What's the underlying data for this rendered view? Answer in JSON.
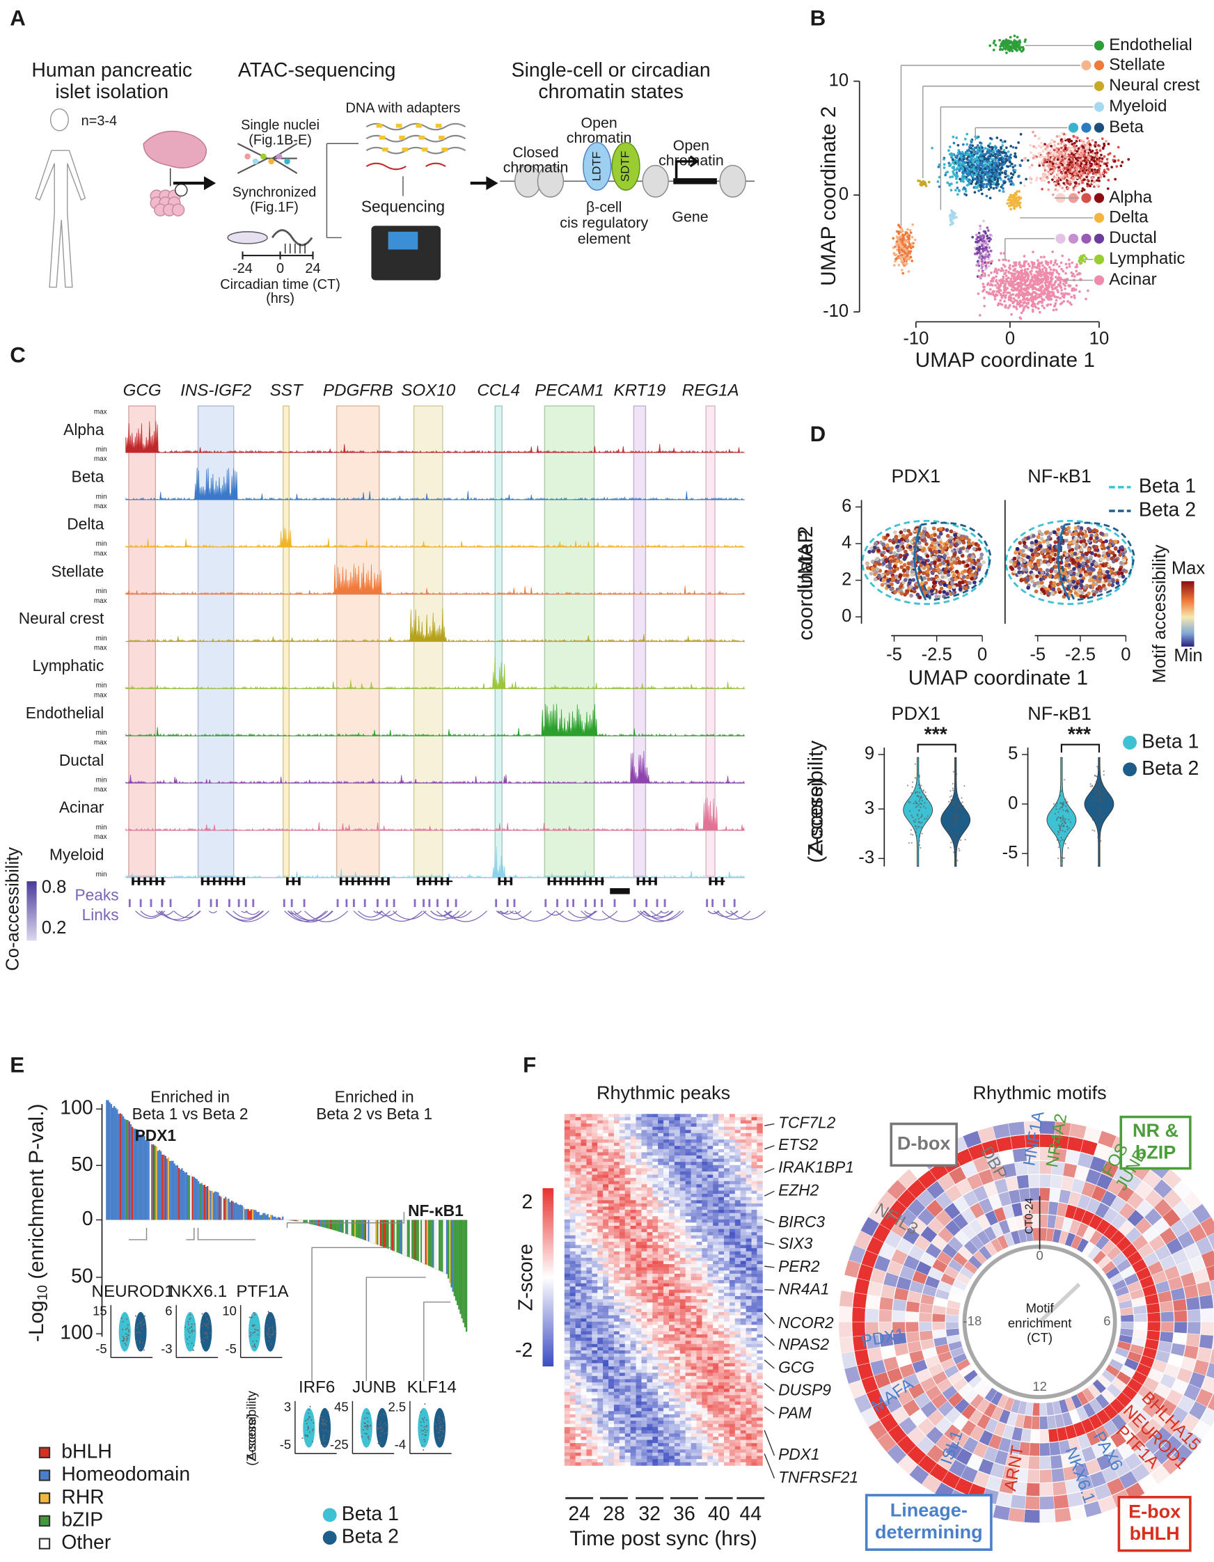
{
  "A": {
    "label": "A",
    "islet": [
      "Human pancreatic",
      "islet isolation"
    ],
    "n": "n=3-4",
    "atac": "ATAC-sequencing",
    "nuclei": [
      "Single nuclei",
      "(Fig.1B-E)"
    ],
    "dna": "DNA with adapters",
    "sync": [
      "Synchronized",
      "(Fig.1F)"
    ],
    "sequencing": "Sequencing",
    "ct_ticks": [
      "-24",
      "0",
      "24"
    ],
    "ct_label": [
      "Circadian time (CT)",
      "(hrs)"
    ],
    "states": [
      "Single-cell or circadian",
      "chromatin states"
    ],
    "closed": [
      "Closed",
      "chromatin"
    ],
    "open1": [
      "Open",
      "chromatin"
    ],
    "ldtf": "LDTF",
    "sdtf": "SDTF",
    "open2": [
      "Open",
      "chromatin"
    ],
    "cre": [
      "β-cell",
      "cis regulatory",
      "element"
    ],
    "gene": "Gene"
  },
  "B": {
    "label": "B",
    "xlabel": "UMAP coordinate 1",
    "ylabel": "UMAP coordinate 2",
    "xticks": [
      "-10",
      "0",
      "10"
    ],
    "yticks": [
      "10",
      "0",
      "-10"
    ],
    "legend": [
      {
        "name": "Endothelial",
        "colors": [
          "#2e9e3a"
        ]
      },
      {
        "name": "Stellate",
        "colors": [
          "#f6b48a",
          "#f07a3a"
        ]
      },
      {
        "name": "Neural crest",
        "colors": [
          "#c8a827"
        ]
      },
      {
        "name": "Myeloid",
        "colors": [
          "#a6d8ee"
        ]
      },
      {
        "name": "Beta",
        "colors": [
          "#3ab3cf",
          "#2a7bbf",
          "#1d4f7c"
        ]
      },
      {
        "name": "Alpha",
        "colors": [
          "#fbd3cc",
          "#f29c98",
          "#d6504a",
          "#8b0d12"
        ]
      },
      {
        "name": "Delta",
        "colors": [
          "#f4b53f"
        ]
      },
      {
        "name": "Ductal",
        "colors": [
          "#e3c3e6",
          "#c58fd0",
          "#9b59b6",
          "#6a3d9a"
        ]
      },
      {
        "name": "Lymphatic",
        "colors": [
          "#9acd32"
        ]
      },
      {
        "name": "Acinar",
        "colors": [
          "#ef8bab"
        ]
      }
    ]
  },
  "C": {
    "label": "C",
    "genes": [
      "GCG",
      "INS-IGF2",
      "SST",
      "PDGFRB",
      "SOX10",
      "CCL4",
      "PECAM1",
      "KRT19",
      "REG1A"
    ],
    "gene_colors": [
      "#f4b3b0",
      "#b8cff0",
      "#f8e08a",
      "#f8c9a8",
      "#ece3a8",
      "#a8e8e0",
      "#b8e6b0",
      "#dcc0ea",
      "#f8cde0"
    ],
    "cell_types": [
      {
        "name": "Alpha",
        "color": "#c0282a"
      },
      {
        "name": "Beta",
        "color": "#3a78c9"
      },
      {
        "name": "Delta",
        "color": "#f0b429"
      },
      {
        "name": "Stellate",
        "color": "#f07a3a"
      },
      {
        "name": "Neural crest",
        "color": "#b5a21a"
      },
      {
        "name": "Lymphatic",
        "color": "#9bc53d"
      },
      {
        "name": "Endothelial",
        "color": "#2ca02c"
      },
      {
        "name": "Ductal",
        "color": "#8e44ad"
      },
      {
        "name": "Acinar",
        "color": "#e27396"
      },
      {
        "name": "Myeloid",
        "color": "#8fd0ea"
      }
    ],
    "max": "max",
    "min": "min",
    "coacc": "Co-accessibility",
    "coacc_ticks": [
      "0.8",
      "0.2"
    ],
    "peaks": "Peaks",
    "links": "Links"
  },
  "D": {
    "label": "D",
    "motifs": [
      "PDX1",
      "NF-κB1"
    ],
    "groups": [
      {
        "name": "Beta 1",
        "color": "#3ec1d3"
      },
      {
        "name": "Beta 2",
        "color": "#1d5d8a"
      }
    ],
    "umap_y": [
      "UMAP",
      "coordinate 2"
    ],
    "umap_x": "UMAP coordinate 1",
    "umap_yticks": [
      "6",
      "4",
      "2",
      "0"
    ],
    "umap_xticks": [
      "-5",
      "-2.5",
      "0"
    ],
    "colorbar": "Motif accessibility",
    "max": "Max",
    "min": "Min",
    "violin_ylabel": [
      "Accessibility",
      "(Z-score)"
    ],
    "violin_yticks": [
      [
        "9",
        "3",
        "-3"
      ],
      [
        "5",
        "0",
        "-5"
      ]
    ],
    "signif": "***"
  },
  "E": {
    "label": "E",
    "ylabel": {
      "pre": "-Log",
      "sub": "10",
      "post": " (enrichment P-val.)"
    },
    "yticks": [
      "100",
      "50",
      "0",
      "50",
      "100"
    ],
    "enriched1": [
      "Enriched in",
      "Beta 1 vs Beta 2"
    ],
    "enriched2": [
      "Enriched in",
      "Beta 2 vs Beta 1"
    ],
    "top_label": "PDX1",
    "bottom_label": "NF-κB1",
    "insets": [
      {
        "name": "NEUROD1",
        "ticks": [
          "15",
          "-5"
        ]
      },
      {
        "name": "NKX6.1",
        "ticks": [
          "6",
          "-3"
        ]
      },
      {
        "name": "PTF1A",
        "ticks": [
          "10",
          "-5"
        ]
      },
      {
        "name": "IRF6",
        "ticks": [
          "3",
          "-5"
        ]
      },
      {
        "name": "JUNB",
        "ticks": [
          "45",
          "-25"
        ]
      },
      {
        "name": "KLF14",
        "ticks": [
          "2.5",
          "-4"
        ]
      }
    ],
    "inset_ylabel": [
      "Accessibility",
      "(Z-score)"
    ],
    "families": [
      {
        "name": "bHLH",
        "color": "#d7301f"
      },
      {
        "name": "Homeodomain",
        "color": "#4a7fc9"
      },
      {
        "name": "RHR",
        "color": "#f2b640"
      },
      {
        "name": "bZIP",
        "color": "#3f9b3a"
      },
      {
        "name": "Other",
        "color": "#ffffff"
      }
    ],
    "groups": [
      {
        "name": "Beta 1",
        "color": "#3ec1d3"
      },
      {
        "name": "Beta 2",
        "color": "#1d5d8a"
      }
    ]
  },
  "F": {
    "label": "F",
    "peaks_title": "Rhythmic peaks",
    "genes": [
      "TCF7L2",
      "ETS2",
      "IRAK1BP1",
      "EZH2",
      "BIRC3",
      "SIX3",
      "PER2",
      "NR4A1",
      "NCOR2",
      "NPAS2",
      "GCG",
      "DUSP9",
      "PAM",
      "PDX1",
      "TNFRSF21"
    ],
    "zscore": "Z-score",
    "z_ticks": [
      "2",
      "-2"
    ],
    "xticks": [
      "24",
      "28",
      "32",
      "36",
      "40",
      "44"
    ],
    "xlabel": "Time post sync (hrs)",
    "motifs_title": "Rhythmic motifs",
    "boxes": [
      {
        "lines": [
          "D-box"
        ],
        "color": "#777777"
      },
      {
        "lines": [
          "NR &",
          "bZIP"
        ],
        "color": "#4c9e3a"
      },
      {
        "lines": [
          "Lineage-",
          "determining"
        ],
        "color": "#4a7fc9"
      },
      {
        "lines": [
          "E-box",
          "bHLH"
        ],
        "color": "#d7301f"
      }
    ],
    "motif_labels": [
      {
        "name": "DBP",
        "color": "#777777"
      },
      {
        "name": "HNF1A",
        "color": "#4a7fc9"
      },
      {
        "name": "NR4A2",
        "color": "#4c9e3a"
      },
      {
        "name": "FOS",
        "color": "#4c9e3a"
      },
      {
        "name": "JUNB",
        "color": "#4c9e3a"
      },
      {
        "name": "NFIL3",
        "color": "#777777"
      },
      {
        "name": "PDX1",
        "color": "#4a7fc9"
      },
      {
        "name": "MAFA",
        "color": "#4a7fc9"
      },
      {
        "name": "ISL1",
        "color": "#4a7fc9"
      },
      {
        "name": "ARNT",
        "color": "#d7301f"
      },
      {
        "name": "NKX6.1",
        "color": "#4a7fc9"
      },
      {
        "name": "PAX6",
        "color": "#4a7fc9"
      },
      {
        "name": "PTF1A",
        "color": "#d7301f"
      },
      {
        "name": "NEUROD1",
        "color": "#d7301f"
      },
      {
        "name": "BHLHA15",
        "color": "#d7301f"
      }
    ],
    "clock": {
      "ct": "CT0-24",
      "ticks": [
        "0",
        "6",
        "12",
        "-18"
      ],
      "center": [
        "Motif",
        "enrichment",
        "(CT)"
      ]
    }
  }
}
